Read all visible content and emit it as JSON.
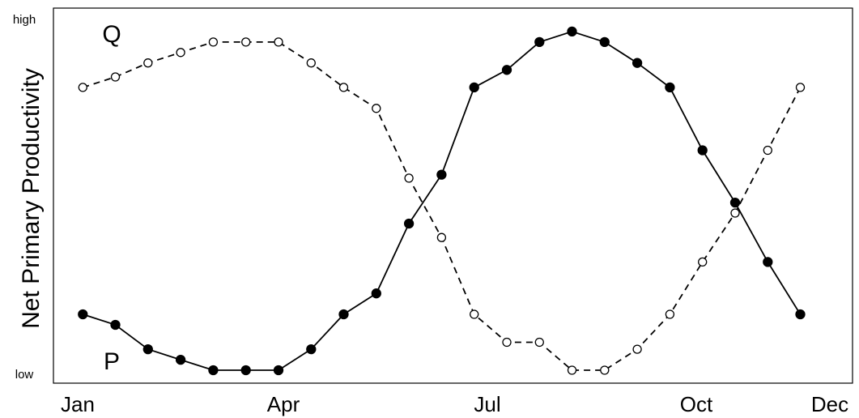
{
  "chart_data": {
    "type": "line",
    "title": "",
    "xlabel": "",
    "ylabel": "Net Primary Productivity",
    "x_ticks": [
      "Jan",
      "Apr",
      "Jul",
      "Oct",
      "Dec"
    ],
    "y_ticks": [
      "low",
      "high"
    ],
    "x": [
      1,
      2,
      3,
      4,
      5,
      6,
      7,
      8,
      9,
      10,
      11,
      12,
      13,
      14,
      15,
      16,
      17,
      18,
      19,
      20,
      21,
      22,
      23
    ],
    "xlim": [
      0.1,
      24.6
    ],
    "ylim": [
      0,
      1
    ],
    "grid": false,
    "legend": "none",
    "series": [
      {
        "name": "P",
        "line_style": "solid",
        "marker": "filled-circle",
        "values": [
          0.16,
          0.13,
          0.06,
          0.03,
          0.0,
          0.0,
          0.0,
          0.06,
          0.16,
          0.22,
          0.42,
          0.56,
          0.81,
          0.86,
          0.94,
          0.97,
          0.94,
          0.88,
          0.81,
          0.63,
          0.48,
          0.31,
          0.16
        ]
      },
      {
        "name": "Q",
        "line_style": "dashed",
        "marker": "open-circle",
        "values": [
          0.81,
          0.84,
          0.88,
          0.91,
          0.94,
          0.94,
          0.94,
          0.88,
          0.81,
          0.75,
          0.55,
          0.38,
          0.16,
          0.08,
          0.08,
          0.0,
          0.0,
          0.06,
          0.16,
          0.31,
          0.45,
          0.63,
          0.81
        ]
      }
    ],
    "annotations": [
      {
        "text": "Q",
        "series": "Q"
      },
      {
        "text": "P",
        "series": "P"
      }
    ],
    "colors": {
      "line": "#000000",
      "background": "#ffffff",
      "axis": "#000000"
    }
  }
}
